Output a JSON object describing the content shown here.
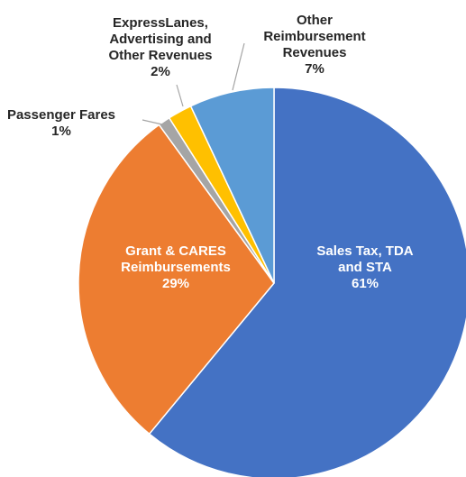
{
  "chart_data": {
    "type": "pie",
    "title": "",
    "slices": [
      {
        "label_lines": [
          "Sales Tax, TDA",
          "and STA"
        ],
        "value": 61,
        "pct_label": "61%",
        "color": "#4472C4"
      },
      {
        "label_lines": [
          "Grant & CARES",
          "Reimbursements"
        ],
        "value": 29,
        "pct_label": "29%",
        "color": "#ED7D31"
      },
      {
        "label_lines": [
          "Passenger Fares"
        ],
        "value": 1,
        "pct_label": "1%",
        "color": "#A5A5A5"
      },
      {
        "label_lines": [
          "ExpressLanes,",
          "Advertising and",
          "Other Revenues"
        ],
        "value": 2,
        "pct_label": "2%",
        "color": "#FFC000"
      },
      {
        "label_lines": [
          "Other",
          "Reimbursement",
          "Revenues"
        ],
        "value": 7,
        "pct_label": "7%",
        "color": "#5B9BD5"
      }
    ],
    "legend": "none"
  }
}
